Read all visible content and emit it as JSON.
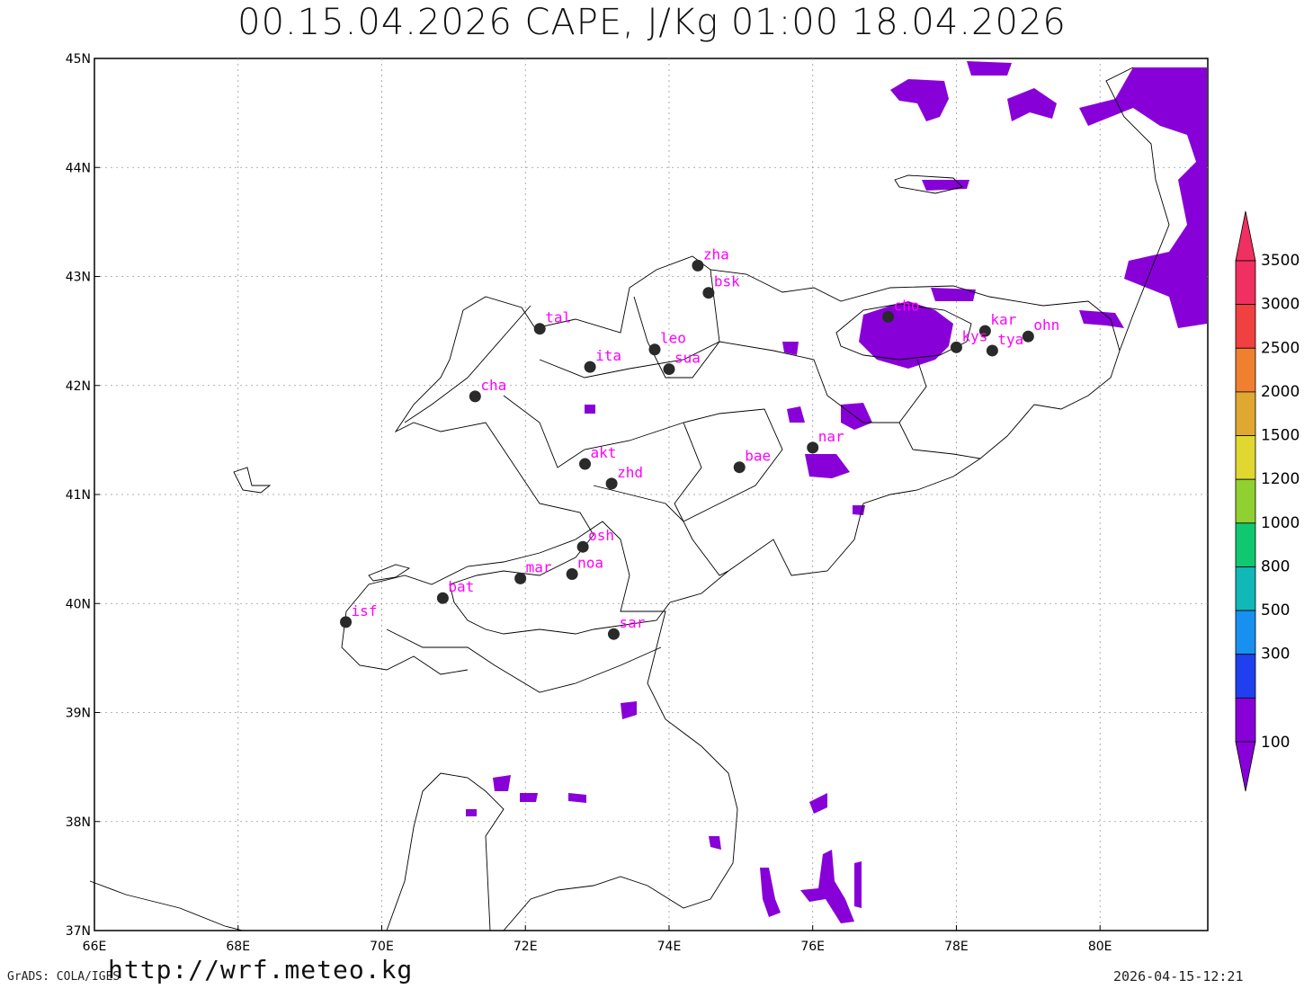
{
  "title": "00.15.04.2026 CAPE, J/Kg 01:00 18.04.2026",
  "footer": {
    "grads": "GrADS: COLA/IGES",
    "url": "http://wrf.meteo.kg",
    "timestamp": "2026-04-15-12:21"
  },
  "axes": {
    "lat_labels": [
      "45N",
      "44N",
      "43N",
      "42N",
      "41N",
      "40N",
      "39N",
      "38N",
      "37N"
    ],
    "lon_labels": [
      "66E",
      "68E",
      "70E",
      "72E",
      "74E",
      "76E",
      "78E",
      "80E"
    ],
    "lat_range": [
      37,
      45
    ],
    "lon_range": [
      66,
      81.5
    ]
  },
  "colorbar": {
    "labels": [
      "3500",
      "3000",
      "2500",
      "2000",
      "1500",
      "1200",
      "1000",
      "800",
      "500",
      "300",
      "100"
    ],
    "colors": [
      "#f03060",
      "#f04040",
      "#f08030",
      "#e0a830",
      "#e0d830",
      "#90d030",
      "#10c870",
      "#10b8b8",
      "#1890f0",
      "#2040f0",
      "#8800d8"
    ]
  },
  "stations": [
    {
      "code": "zha",
      "lon": 74.4,
      "lat": 43.1
    },
    {
      "code": "bsk",
      "lon": 74.55,
      "lat": 42.85
    },
    {
      "code": "tal",
      "lon": 72.2,
      "lat": 42.52
    },
    {
      "code": "leo",
      "lon": 73.8,
      "lat": 42.33
    },
    {
      "code": "sua",
      "lon": 74.0,
      "lat": 42.15
    },
    {
      "code": "ita",
      "lon": 72.9,
      "lat": 42.17
    },
    {
      "code": "cha",
      "lon": 71.3,
      "lat": 41.9
    },
    {
      "code": "cho",
      "lon": 77.05,
      "lat": 42.63
    },
    {
      "code": "kar",
      "lon": 78.4,
      "lat": 42.5
    },
    {
      "code": "kys",
      "lon": 78.0,
      "lat": 42.35
    },
    {
      "code": "tya",
      "lon": 78.5,
      "lat": 42.32
    },
    {
      "code": "ohn",
      "lon": 79.0,
      "lat": 42.45
    },
    {
      "code": "nar",
      "lon": 76.0,
      "lat": 41.43
    },
    {
      "code": "bae",
      "lon": 74.98,
      "lat": 41.25
    },
    {
      "code": "akt",
      "lon": 72.83,
      "lat": 41.28
    },
    {
      "code": "zhd",
      "lon": 73.2,
      "lat": 41.1
    },
    {
      "code": "osh",
      "lon": 72.8,
      "lat": 40.52
    },
    {
      "code": "noa",
      "lon": 72.65,
      "lat": 40.27
    },
    {
      "code": "mar",
      "lon": 71.93,
      "lat": 40.23
    },
    {
      "code": "bat",
      "lon": 70.85,
      "lat": 40.05
    },
    {
      "code": "isf",
      "lon": 69.5,
      "lat": 39.83
    },
    {
      "code": "sar",
      "lon": 73.23,
      "lat": 39.72
    }
  ]
}
